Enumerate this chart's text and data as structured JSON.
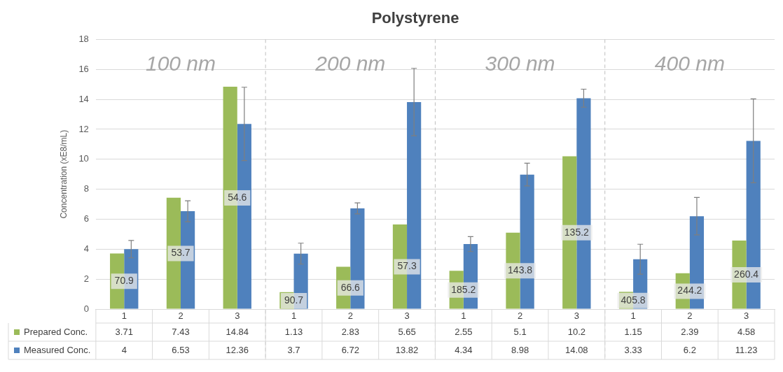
{
  "chart_data": {
    "type": "bar",
    "title": "Polystyrene",
    "ylabel": "Concentration (xE8/mL)",
    "categories": [
      "1",
      "2",
      "3",
      "1",
      "2",
      "3",
      "1",
      "2",
      "3",
      "1",
      "2",
      "3"
    ],
    "series": [
      {
        "name": "Prepared Conc.",
        "color": "#9bbb59",
        "values": [
          3.71,
          7.43,
          14.84,
          1.13,
          2.83,
          5.65,
          2.55,
          5.1,
          10.2,
          1.15,
          2.39,
          4.58
        ]
      },
      {
        "name": "Measured Conc.",
        "color": "#4f81bd",
        "values": [
          4,
          6.53,
          12.36,
          3.7,
          6.72,
          13.82,
          4.34,
          8.98,
          14.08,
          3.33,
          6.2,
          11.23
        ],
        "errors": [
          0.58,
          0.7,
          2.45,
          0.7,
          0.37,
          2.25,
          0.5,
          0.76,
          0.6,
          1.0,
          1.25,
          2.8
        ]
      }
    ],
    "annotations": [
      "100 nm",
      "200 nm",
      "300 nm",
      "400 nm",
      "70.9",
      "53.7",
      "54.6",
      "90.7",
      "66.6",
      "57.3",
      "185.2",
      "143.8",
      "135.2",
      "405.8",
      "244.2",
      "260.4"
    ],
    "ylim": [
      0,
      18
    ],
    "yticks": [
      0,
      2,
      4,
      6,
      8,
      10,
      12,
      14,
      16,
      18
    ],
    "grid": "y",
    "data_labels": true,
    "legend": "bottom"
  }
}
